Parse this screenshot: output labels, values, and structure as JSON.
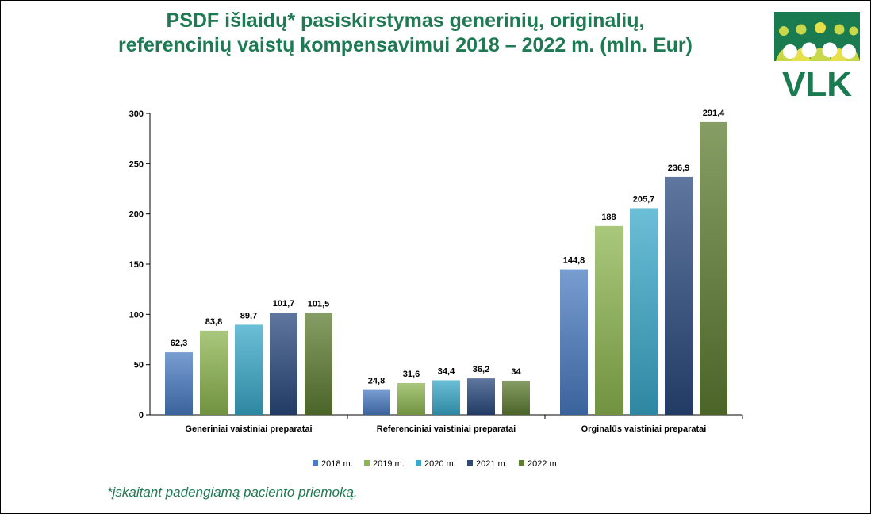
{
  "title_lines": [
    "PSDF išlaidų* pasiskirstymas generinių, originalių,",
    "referencinių vaistų kompensavimui 2018 – 2022 m. (mln. Eur)"
  ],
  "logo": {
    "text": "VLK",
    "colors": {
      "green": "#1a7a50",
      "lime": "#c8d84a",
      "yellow": "#e8e04a"
    }
  },
  "footnote": "*įskaitant padengiamą paciento priemoką.",
  "chart_data": {
    "type": "bar",
    "categories": [
      "Generiniai vaistiniai preparatai",
      "Referenciniai vaistiniai preparatai",
      "Orginalūs vaistiniai preparatai"
    ],
    "series": [
      {
        "name": "2018 m.",
        "color": "#4a7cc2",
        "values": [
          62.3,
          24.8,
          144.8
        ],
        "labels": [
          "62,3",
          "24,8",
          "144,8"
        ]
      },
      {
        "name": "2019 m.",
        "color": "#8db650",
        "values": [
          83.8,
          31.6,
          188
        ],
        "labels": [
          "83,8",
          "31,6",
          "188"
        ]
      },
      {
        "name": "2020 m.",
        "color": "#3aa9c9",
        "values": [
          89.7,
          34.4,
          205.7
        ],
        "labels": [
          "89,7",
          "34,4",
          "205,7"
        ]
      },
      {
        "name": "2021 m.",
        "color": "#2a4a7e",
        "values": [
          101.7,
          36.2,
          236.9
        ],
        "labels": [
          "101,7",
          "36,2",
          "236,9"
        ]
      },
      {
        "name": "2022 m.",
        "color": "#5e7d32",
        "values": [
          101.5,
          34,
          291.4
        ],
        "labels": [
          "101,5",
          "34",
          "291,4"
        ]
      }
    ],
    "ylim": [
      0,
      300
    ],
    "yticks": [
      "0",
      "50",
      "100",
      "150",
      "200",
      "250",
      "300"
    ],
    "grid": false,
    "legend_position": "bottom"
  }
}
